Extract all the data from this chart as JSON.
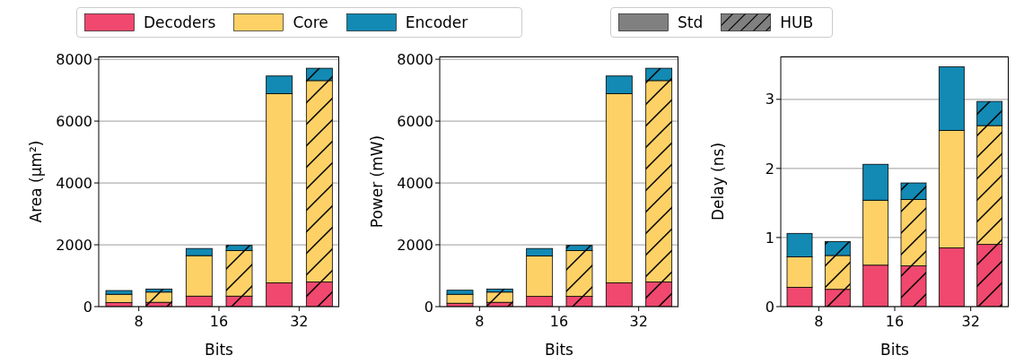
{
  "chart_data": [
    {
      "type": "bar",
      "stacked": true,
      "legend": "top",
      "grid": "y",
      "xlabel": "Bits",
      "ylabel": "Area (μm²)",
      "annotations": [
        "Std",
        "HUB"
      ],
      "categories": [
        "8",
        null,
        "16",
        null,
        "32",
        null
      ],
      "ylim": [
        0,
        8090
      ],
      "yticks": [
        0,
        2000,
        4000,
        6000,
        8000
      ],
      "series": [
        {
          "name": "Decoders",
          "color": "#f0486e",
          "values": [
            130,
            null,
            340,
            null,
            770,
            null
          ]
        },
        {
          "name": "Core",
          "color": "#fdd166",
          "values": [
            270,
            null,
            1310,
            null,
            6120,
            null
          ]
        },
        {
          "name": "Encoder",
          "color": "#128ab4",
          "values": [
            120,
            null,
            230,
            null,
            570,
            null
          ]
        },
        {
          "color": "#f0486e",
          "values": [
            null,
            140,
            null,
            340,
            null,
            800
          ]
        },
        {
          "color": "#fdd166",
          "values": [
            null,
            330,
            null,
            1470,
            null,
            6510
          ]
        },
        {
          "color": "#128ab4",
          "values": [
            null,
            100,
            null,
            170,
            null,
            400
          ]
        }
      ]
    },
    {
      "type": "bar",
      "stacked": true,
      "grid": "y",
      "xlabel": "Bits",
      "ylabel": "Power (mW)",
      "categories": [
        "8",
        null,
        "16",
        null,
        "32",
        null
      ],
      "ylim": [
        0,
        8090
      ],
      "yticks": [
        0,
        2000,
        4000,
        6000,
        8000
      ],
      "series": [
        {
          "color": "#f0486e",
          "values": [
            110,
            null,
            330,
            null,
            770,
            null
          ]
        },
        {
          "color": "#fdd166",
          "values": [
            290,
            null,
            1310,
            null,
            6120,
            null
          ]
        },
        {
          "color": "#128ab4",
          "values": [
            130,
            null,
            240,
            null,
            570,
            null
          ]
        },
        {
          "color": "#f0486e",
          "values": [
            null,
            140,
            null,
            330,
            null,
            800
          ]
        },
        {
          "color": "#fdd166",
          "values": [
            null,
            330,
            null,
            1480,
            null,
            6510
          ]
        },
        {
          "color": "#128ab4",
          "values": [
            null,
            100,
            null,
            170,
            null,
            400
          ]
        }
      ]
    },
    {
      "type": "bar",
      "stacked": true,
      "grid": "y",
      "xlabel": "Bits",
      "ylabel": "Delay (ns)",
      "categories": [
        "8",
        null,
        "16",
        null,
        "32",
        null
      ],
      "ylim": [
        0,
        3.62
      ],
      "yticks": [
        0,
        1,
        2,
        3
      ],
      "series": [
        {
          "color": "#f0486e",
          "values": [
            0.28,
            null,
            0.6,
            null,
            0.85,
            null
          ]
        },
        {
          "color": "#fdd166",
          "values": [
            0.44,
            null,
            0.94,
            null,
            1.7,
            null
          ]
        },
        {
          "color": "#128ab4",
          "values": [
            0.34,
            null,
            0.52,
            null,
            0.92,
            null
          ]
        },
        {
          "color": "#f0486e",
          "values": [
            null,
            0.25,
            null,
            0.59,
            null,
            0.9
          ]
        },
        {
          "color": "#fdd166",
          "values": [
            null,
            0.49,
            null,
            0.96,
            null,
            1.72
          ]
        },
        {
          "color": "#128ab4",
          "values": [
            null,
            0.2,
            null,
            0.24,
            null,
            0.35
          ]
        }
      ]
    }
  ]
}
